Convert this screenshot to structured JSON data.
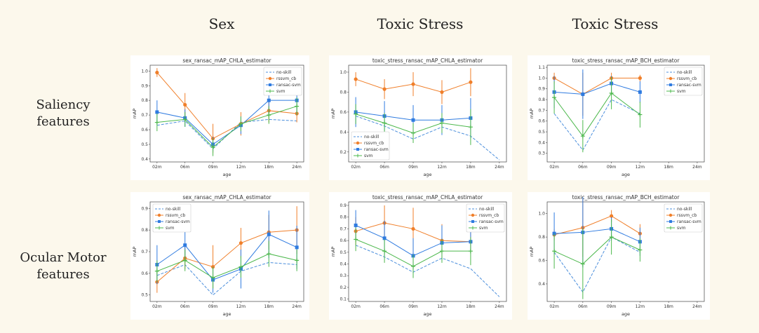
{
  "column_titles": [
    "Sex",
    "Toxic Stress",
    "Toxic Stress"
  ],
  "row_labels": [
    "Saliency\nfeatures",
    "Ocular Motor\nfeatures"
  ],
  "colors": {
    "no-skill": "#4c8fdc",
    "rssvm_cb": "#f07f2a",
    "ransac-svm": "#2f7be0",
    "svm": "#4cb84c",
    "background": "#fcf8ec"
  },
  "chart_data": [
    {
      "type": "line",
      "title": "sex_ransac_mAP_CHLA_estimator",
      "xlabel": "age",
      "ylabel": "mAP",
      "categories": [
        "02m",
        "06m",
        "09m",
        "12m",
        "18m",
        "24m"
      ],
      "ylim": [
        0.38,
        1.04
      ],
      "yticks": [
        0.4,
        0.5,
        0.6,
        0.7,
        0.8,
        0.9,
        1.0
      ],
      "ytick_labels": [
        "0.4",
        "0.5",
        "0.6",
        "0.7",
        "0.8",
        "0.9",
        "1.0"
      ],
      "legend": "top-right",
      "series": [
        {
          "name": "no-skill",
          "style": "dashed",
          "values": [
            0.63,
            0.66,
            0.47,
            0.65,
            0.67,
            0.66
          ]
        },
        {
          "name": "rssvm_cb",
          "style": "marker-o",
          "values": [
            0.99,
            0.77,
            0.54,
            0.64,
            0.73,
            0.71
          ],
          "err": [
            0.03,
            0.08,
            0.1,
            0.08,
            0.08,
            0.06
          ]
        },
        {
          "name": "ransac-svm",
          "style": "marker-s",
          "values": [
            0.72,
            0.68,
            0.5,
            0.63,
            0.8,
            0.8
          ],
          "err": [
            0.08,
            0.06,
            0.05,
            0.06,
            0.1,
            0.1
          ]
        },
        {
          "name": "svm",
          "style": "marker-plus",
          "values": [
            0.65,
            0.67,
            0.48,
            0.64,
            0.7,
            0.76
          ],
          "err": [
            0.06,
            0.05,
            0.06,
            0.05,
            0.06,
            0.06
          ]
        }
      ]
    },
    {
      "type": "line",
      "title": "toxic_stress_ransac_mAP_CHLA_estimator",
      "xlabel": "age",
      "ylabel": "mAP",
      "categories": [
        "02m",
        "06m",
        "09m",
        "12m",
        "18m",
        "24m"
      ],
      "ylim": [
        0.1,
        1.07
      ],
      "yticks": [
        0.2,
        0.4,
        0.6,
        0.8,
        1.0
      ],
      "ytick_labels": [
        "0.2",
        "0.4",
        "0.6",
        "0.8",
        "1.0"
      ],
      "legend": "bottom-left",
      "series": [
        {
          "name": "no-skill",
          "style": "dashed",
          "values": [
            0.56,
            0.46,
            0.33,
            0.45,
            0.36,
            0.12
          ]
        },
        {
          "name": "rssvm_cb",
          "style": "marker-o",
          "values": [
            0.93,
            0.83,
            0.88,
            0.8,
            0.9,
            null
          ],
          "err": [
            0.07,
            0.1,
            0.12,
            0.12,
            0.14,
            null
          ]
        },
        {
          "name": "ransac-svm",
          "style": "marker-s",
          "values": [
            0.6,
            0.56,
            0.52,
            0.52,
            0.54,
            null
          ],
          "err": [
            0.15,
            0.15,
            0.15,
            0.15,
            0.2,
            null
          ]
        },
        {
          "name": "svm",
          "style": "marker-plus",
          "values": [
            0.58,
            0.49,
            0.39,
            0.49,
            0.45,
            null
          ],
          "err": [
            0.1,
            0.1,
            0.1,
            0.1,
            0.18,
            null
          ]
        }
      ]
    },
    {
      "type": "line",
      "title": "toxic_stress_ransac_mAP_BCH_estimator",
      "xlabel": "age",
      "ylabel": "mAP",
      "categories": [
        "02m",
        "06m",
        "09m",
        "12m",
        "18m",
        "24m"
      ],
      "ylim": [
        0.22,
        1.12
      ],
      "yticks": [
        0.3,
        0.4,
        0.5,
        0.6,
        0.7,
        0.8,
        0.9,
        1.0,
        1.1
      ],
      "ytick_labels": [
        "0.3",
        "0.4",
        "0.5",
        "0.6",
        "0.7",
        "0.8",
        "0.9",
        "1.0",
        "1.1"
      ],
      "legend": "top-right",
      "series": [
        {
          "name": "no-skill",
          "style": "dashed",
          "values": [
            0.67,
            0.33,
            0.8,
            0.67,
            null,
            null
          ]
        },
        {
          "name": "rssvm_cb",
          "style": "marker-o",
          "values": [
            1.0,
            0.85,
            1.0,
            1.0,
            null,
            null
          ],
          "err": [
            0.05,
            0.2,
            0.05,
            0.03,
            null,
            null
          ]
        },
        {
          "name": "ransac-svm",
          "style": "marker-s",
          "values": [
            0.87,
            0.85,
            0.95,
            0.87,
            null,
            null
          ],
          "err": [
            0.15,
            0.23,
            0.07,
            0.1,
            null,
            null
          ]
        },
        {
          "name": "svm",
          "style": "marker-plus",
          "values": [
            0.82,
            0.46,
            0.86,
            0.66,
            null,
            null
          ],
          "err": [
            0.15,
            0.15,
            0.15,
            0.12,
            null,
            null
          ]
        }
      ]
    },
    {
      "type": "line",
      "title": "sex_ransac_mAP_CHLA_estimator",
      "xlabel": "age",
      "ylabel": "mAP",
      "categories": [
        "02m",
        "06m",
        "09m",
        "12m",
        "18m",
        "24m"
      ],
      "ylim": [
        0.47,
        0.93
      ],
      "yticks": [
        0.5,
        0.6,
        0.7,
        0.8,
        0.9
      ],
      "ytick_labels": [
        "0.5",
        "0.6",
        "0.7",
        "0.8",
        "0.9"
      ],
      "legend": "top-left",
      "series": [
        {
          "name": "no-skill",
          "style": "dashed",
          "values": [
            0.59,
            0.64,
            0.5,
            0.61,
            0.65,
            0.64
          ]
        },
        {
          "name": "rssvm_cb",
          "style": "marker-o",
          "values": [
            0.56,
            0.67,
            0.63,
            0.74,
            0.79,
            0.8
          ],
          "err": [
            0.05,
            0.05,
            0.1,
            0.07,
            0.08,
            0.11
          ]
        },
        {
          "name": "ransac-svm",
          "style": "marker-s",
          "values": [
            0.64,
            0.73,
            0.57,
            0.62,
            0.78,
            0.72
          ],
          "err": [
            0.09,
            0.07,
            0.06,
            0.09,
            0.11,
            0.1
          ]
        },
        {
          "name": "svm",
          "style": "marker-plus",
          "values": [
            0.61,
            0.66,
            0.58,
            0.63,
            0.69,
            0.66
          ],
          "err": [
            0.05,
            0.05,
            0.05,
            0.05,
            0.06,
            0.05
          ]
        }
      ]
    },
    {
      "type": "line",
      "title": "toxic_stress_ransac_mAP_CHLA_estimator",
      "xlabel": "age",
      "ylabel": "mAP",
      "categories": [
        "02m",
        "06m",
        "09m",
        "12m",
        "18m",
        "24m"
      ],
      "ylim": [
        0.08,
        0.93
      ],
      "yticks": [
        0.1,
        0.2,
        0.3,
        0.4,
        0.5,
        0.6,
        0.7,
        0.8,
        0.9
      ],
      "ytick_labels": [
        "0.1",
        "0.2",
        "0.3",
        "0.4",
        "0.5",
        "0.6",
        "0.7",
        "0.8",
        "0.9"
      ],
      "legend": "top-right",
      "series": [
        {
          "name": "no-skill",
          "style": "dashed",
          "values": [
            0.56,
            0.46,
            0.33,
            0.45,
            0.36,
            0.12
          ]
        },
        {
          "name": "rssvm_cb",
          "style": "marker-o",
          "values": [
            0.68,
            0.75,
            0.7,
            0.6,
            0.59,
            null
          ],
          "err": [
            0.12,
            0.15,
            0.18,
            0.14,
            0.1,
            null
          ]
        },
        {
          "name": "ransac-svm",
          "style": "marker-s",
          "values": [
            0.73,
            0.62,
            0.47,
            0.58,
            0.59,
            null
          ],
          "err": [
            0.13,
            0.15,
            0.15,
            0.15,
            0.1,
            null
          ]
        },
        {
          "name": "svm",
          "style": "marker-plus",
          "values": [
            0.61,
            0.51,
            0.38,
            0.51,
            0.51,
            null
          ],
          "err": [
            0.1,
            0.1,
            0.1,
            0.1,
            0.12,
            null
          ]
        }
      ]
    },
    {
      "type": "line",
      "title": "toxic_stress_ransac_mAP_BCH_estimator",
      "xlabel": "age",
      "ylabel": "mAP",
      "categories": [
        "02m",
        "06m",
        "09m",
        "12m",
        "18m",
        "24m"
      ],
      "ylim": [
        0.25,
        1.1
      ],
      "yticks": [
        0.4,
        0.6,
        0.8,
        1.0
      ],
      "ytick_labels": [
        "0.4",
        "0.6",
        "0.8",
        "1.0"
      ],
      "legend": "top-right",
      "series": [
        {
          "name": "no-skill",
          "style": "dashed",
          "values": [
            0.67,
            0.33,
            0.8,
            0.67,
            null,
            null
          ]
        },
        {
          "name": "rssvm_cb",
          "style": "marker-o",
          "values": [
            0.82,
            0.88,
            0.98,
            0.83,
            null,
            null
          ],
          "err": [
            0.05,
            0.25,
            0.05,
            0.08,
            null,
            null
          ]
        },
        {
          "name": "ransac-svm",
          "style": "marker-s",
          "values": [
            0.83,
            0.84,
            0.87,
            0.76,
            null,
            null
          ],
          "err": [
            0.18,
            0.3,
            0.1,
            0.12,
            null,
            null
          ]
        },
        {
          "name": "svm",
          "style": "marker-plus",
          "values": [
            0.68,
            0.57,
            0.8,
            0.69,
            null,
            null
          ],
          "err": [
            0.15,
            0.3,
            0.15,
            0.1,
            null,
            null
          ]
        }
      ]
    }
  ]
}
